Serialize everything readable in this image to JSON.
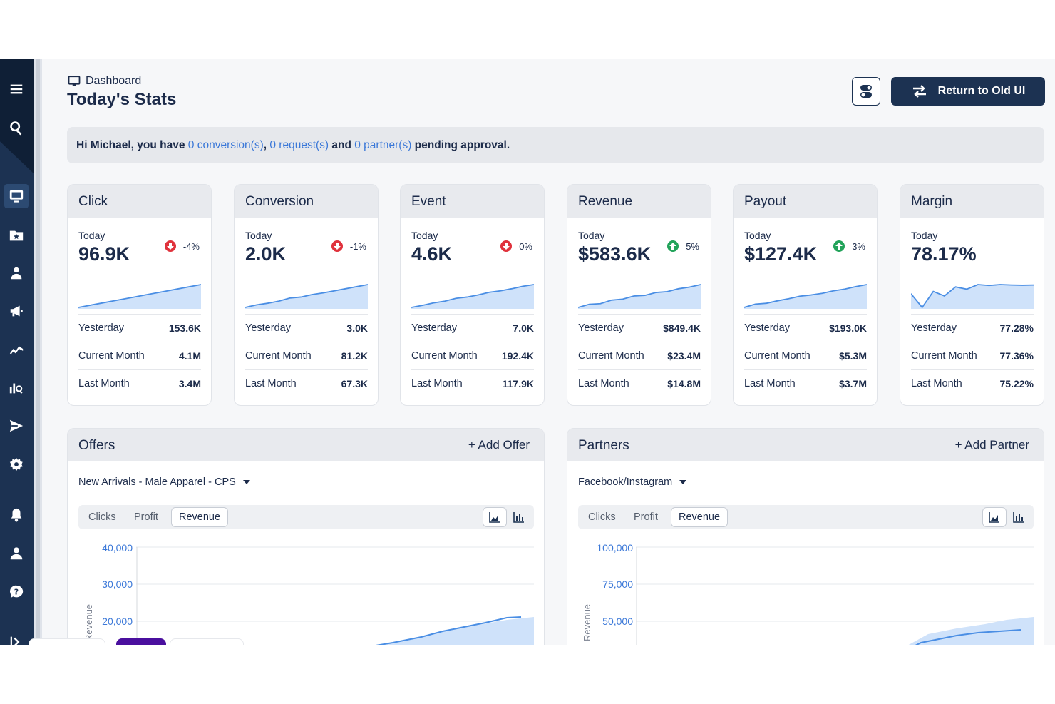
{
  "header": {
    "breadcrumb": "Dashboard",
    "title": "Today's Stats",
    "return_label": "Return to Old UI"
  },
  "notice": {
    "prefix": "Hi Michael, you have ",
    "conversions": "0 conversion(s)",
    "sep1": ", ",
    "requests": "0 request(s)",
    "sep2": " and ",
    "partners": "0 partner(s)",
    "suffix": " pending approval."
  },
  "sidebar": {
    "icons": [
      "menu-icon",
      "search-icon",
      "monitor-icon",
      "star-folder-icon",
      "users-icon",
      "megaphone-icon",
      "handshake-icon",
      "chart-search-icon",
      "send-icon",
      "gear-icon",
      "bell-icon",
      "user-icon",
      "help-icon",
      "expand-icon"
    ]
  },
  "cards": [
    {
      "title": "Click",
      "today_label": "Today",
      "value": "96.9K",
      "delta": "-4%",
      "direction": "down",
      "spark": [
        1,
        2,
        3,
        4,
        5,
        6,
        7,
        8,
        9,
        10,
        11,
        12
      ],
      "rows": [
        {
          "label": "Yesterday",
          "value": "153.6K"
        },
        {
          "label": "Current Month",
          "value": "4.1M"
        },
        {
          "label": "Last Month",
          "value": "3.4M"
        }
      ]
    },
    {
      "title": "Conversion",
      "today_label": "Today",
      "value": "2.0K",
      "delta": "-1%",
      "direction": "down",
      "spark": [
        1,
        2.2,
        3,
        4,
        5.5,
        6,
        7.2,
        8,
        9,
        10,
        11,
        12
      ],
      "rows": [
        {
          "label": "Yesterday",
          "value": "3.0K"
        },
        {
          "label": "Current Month",
          "value": "81.2K"
        },
        {
          "label": "Last Month",
          "value": "67.3K"
        }
      ]
    },
    {
      "title": "Event",
      "today_label": "Today",
      "value": "4.6K",
      "delta": "0%",
      "direction": "down",
      "spark": [
        1,
        2,
        3.2,
        4,
        5.4,
        6,
        7,
        8.3,
        9,
        10,
        11.2,
        12
      ],
      "rows": [
        {
          "label": "Yesterday",
          "value": "7.0K"
        },
        {
          "label": "Current Month",
          "value": "192.4K"
        },
        {
          "label": "Last Month",
          "value": "117.9K"
        }
      ]
    },
    {
      "title": "Revenue",
      "today_label": "Today",
      "value": "$583.6K",
      "delta": "5%",
      "direction": "up",
      "spark": [
        1,
        2.5,
        2.8,
        4.5,
        5,
        6.5,
        6.8,
        8.2,
        8.6,
        10,
        10.8,
        12
      ],
      "rows": [
        {
          "label": "Yesterday",
          "value": "$849.4K"
        },
        {
          "label": "Current Month",
          "value": "$23.4M"
        },
        {
          "label": "Last Month",
          "value": "$14.8M"
        }
      ]
    },
    {
      "title": "Payout",
      "today_label": "Today",
      "value": "$127.4K",
      "delta": "3%",
      "direction": "up",
      "spark": [
        1,
        2.6,
        3,
        4.2,
        5.2,
        6.4,
        7,
        7.8,
        9,
        9.8,
        11,
        12
      ],
      "rows": [
        {
          "label": "Yesterday",
          "value": "$193.0K"
        },
        {
          "label": "Current Month",
          "value": "$5.3M"
        },
        {
          "label": "Last Month",
          "value": "$3.7M"
        }
      ]
    },
    {
      "title": "Margin",
      "today_label": "Today",
      "value": "78.17%",
      "direction": "none",
      "spark": [
        6,
        0,
        7,
        5,
        9,
        8,
        10,
        9.6,
        10,
        9.8,
        9.7,
        9.8
      ],
      "rows": [
        {
          "label": "Yesterday",
          "value": "77.28%"
        },
        {
          "label": "Current Month",
          "value": "77.36%"
        },
        {
          "label": "Last Month",
          "value": "75.22%"
        }
      ]
    }
  ],
  "offers": {
    "title": "Offers",
    "add_label": "+ Add Offer",
    "selected": "New Arrivals - Male Apparel - CPS",
    "tabs": [
      "Clicks",
      "Profit",
      "Revenue"
    ],
    "active_tab": "Revenue",
    "view_icons": [
      "area-chart-icon",
      "bar-chart-icon"
    ],
    "y_label": "Revenue",
    "y_ticks": [
      "40,000",
      "30,000",
      "20,000"
    ]
  },
  "partners": {
    "title": "Partners",
    "add_label": "+ Add Partner",
    "selected": "Facebook/Instagram",
    "tabs": [
      "Clicks",
      "Profit",
      "Revenue"
    ],
    "active_tab": "Revenue",
    "view_icons": [
      "area-chart-icon",
      "bar-chart-icon"
    ],
    "y_label": "Revenue",
    "y_ticks": [
      "100,000",
      "75,000",
      "50,000"
    ]
  },
  "colors": {
    "navy": "#1c3252",
    "accent": "#3b78d8",
    "down": "#e0323c",
    "up": "#22a35a",
    "spark_fill": "#cfe2fa",
    "spark_line": "#4a8ee4"
  }
}
